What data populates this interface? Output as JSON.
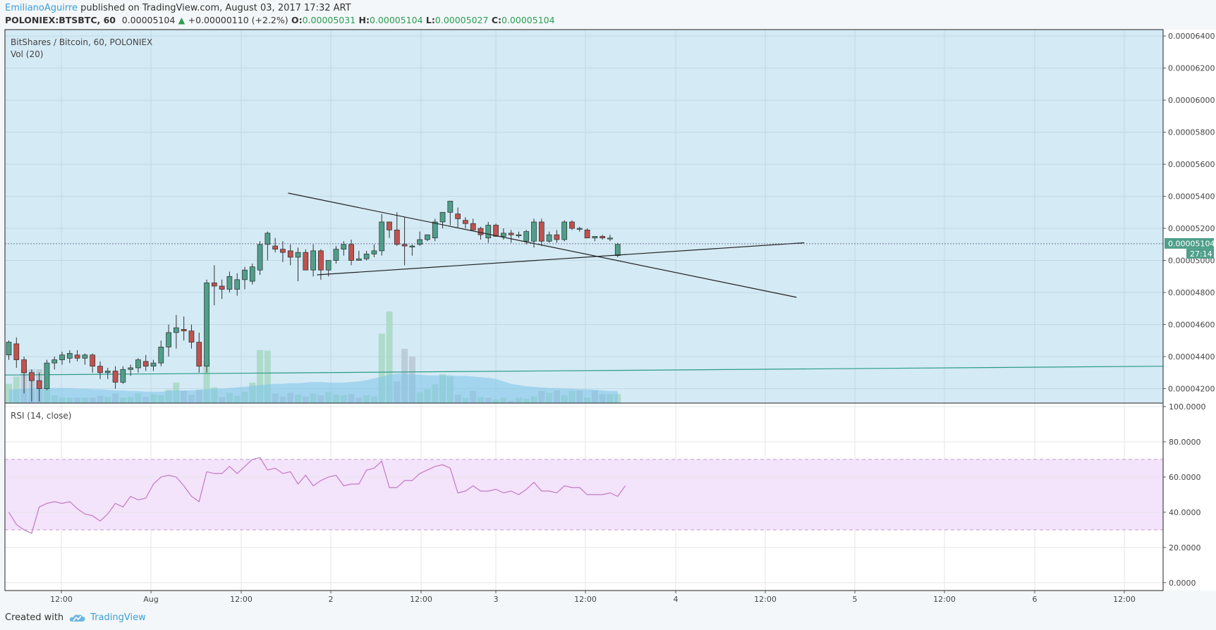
{
  "header": {
    "author": "EmilianoAguirre",
    "published": " published on TradingView.com, August 03, 2017 17:32 ART",
    "symbol": "POLONIEX:BTSBTC, 60",
    "last": "0.00005104",
    "arrow": "▲",
    "change": "+0.00000110 (+2.2%)",
    "o_label": "O:",
    "o_val": "0.00005031",
    "h_label": "H:",
    "h_val": "0.00005104",
    "l_label": "L:",
    "l_val": "0.00005027",
    "c_label": "C:",
    "c_val": "0.00005104"
  },
  "footer": {
    "created_with": "Created with",
    "brand": "TradingView"
  },
  "colors": {
    "price_bg": "#d4eaf5",
    "rsi_bg": "#ffffff",
    "rsi_band": "#f3e3fb",
    "bull": "#4f9f8a",
    "bear": "#c0524f",
    "rsi_line": "#c27bc3",
    "vol_ma": "#7cc3ea",
    "vol_up": "#a7d8c2",
    "vol_down": "#b9c7d3",
    "horizontal_line": "#2b9c85",
    "trend_line": "#222222",
    "last_price_tag": "#4f9f8a"
  },
  "chart_data": [
    {
      "type": "candlestick",
      "title": "BitShares / Bitcoin, 60, POLONIEX",
      "indicator_label": "Vol (20)",
      "y_ticks": [
        "0.00004200",
        "0.00004400",
        "0.00004600",
        "0.00004800",
        "0.00005000",
        "0.00005200",
        "0.00005400",
        "0.00005600",
        "0.00005800",
        "0.00006000",
        "0.00006200",
        "0.00006400"
      ],
      "ylim": [
        4.11e-05,
        6.44e-05
      ],
      "last_price_label": "0.00005104",
      "countdown": "27:14",
      "x_ticks": [
        "12:00",
        "Aug",
        "12:00",
        "2",
        "12:00",
        "3",
        "12:00",
        "4",
        "12:00",
        "5",
        "12:00",
        "6",
        "12:00"
      ],
      "candles": [
        [
          4.41e-05,
          4.5e-05,
          4.38e-05,
          4.49e-05
        ],
        [
          4.48e-05,
          4.52e-05,
          4.33e-05,
          4.38e-05
        ],
        [
          4.38e-05,
          4.4e-05,
          4.17e-05,
          4.3e-05
        ],
        [
          4.3e-05,
          4.32e-05,
          4.12e-05,
          4.25e-05
        ],
        [
          4.25e-05,
          4.3e-05,
          4.12e-05,
          4.2e-05
        ],
        [
          4.2e-05,
          4.38e-05,
          4.19e-05,
          4.36e-05
        ],
        [
          4.36e-05,
          4.4e-05,
          4.32e-05,
          4.38e-05
        ],
        [
          4.38e-05,
          4.43e-05,
          4.35e-05,
          4.41e-05
        ],
        [
          4.39e-05,
          4.44e-05,
          4.36e-05,
          4.42e-05
        ],
        [
          4.41e-05,
          4.44e-05,
          4.37e-05,
          4.39e-05
        ],
        [
          4.39e-05,
          4.42e-05,
          4.35e-05,
          4.41e-05
        ],
        [
          4.41e-05,
          4.42e-05,
          4.3e-05,
          4.34e-05
        ],
        [
          4.34e-05,
          4.37e-05,
          4.26e-05,
          4.3e-05
        ],
        [
          4.3e-05,
          4.33e-05,
          4.26e-05,
          4.31e-05
        ],
        [
          4.31e-05,
          4.34e-05,
          4.2e-05,
          4.24e-05
        ],
        [
          4.24e-05,
          4.34e-05,
          4.23e-05,
          4.32e-05
        ],
        [
          4.32e-05,
          4.35e-05,
          4.28e-05,
          4.33e-05
        ],
        [
          4.33e-05,
          4.39e-05,
          4.3e-05,
          4.38e-05
        ],
        [
          4.37e-05,
          4.41e-05,
          4.31e-05,
          4.34e-05
        ],
        [
          4.34e-05,
          4.38e-05,
          4.31e-05,
          4.36e-05
        ],
        [
          4.36e-05,
          4.5e-05,
          4.34e-05,
          4.46e-05
        ],
        [
          4.46e-05,
          4.6e-05,
          4.4e-05,
          4.55e-05
        ],
        [
          4.55e-05,
          4.66e-05,
          4.45e-05,
          4.58e-05
        ],
        [
          4.57e-05,
          4.65e-05,
          4.5e-05,
          4.56e-05
        ],
        [
          4.56e-05,
          4.6e-05,
          4.45e-05,
          4.49e-05
        ],
        [
          4.49e-05,
          4.55e-05,
          4.3e-05,
          4.34e-05
        ],
        [
          4.34e-05,
          4.88e-05,
          4.3e-05,
          4.86e-05
        ],
        [
          4.86e-05,
          4.97e-05,
          4.72e-05,
          4.84e-05
        ],
        [
          4.84e-05,
          4.88e-05,
          4.76e-05,
          4.82e-05
        ],
        [
          4.82e-05,
          4.93e-05,
          4.8e-05,
          4.9e-05
        ],
        [
          4.82e-05,
          4.92e-05,
          4.78e-05,
          4.88e-05
        ],
        [
          4.88e-05,
          4.96e-05,
          4.82e-05,
          4.94e-05
        ],
        [
          4.87e-05,
          4.98e-05,
          4.85e-05,
          4.96e-05
        ],
        [
          4.94e-05,
          5.12e-05,
          4.91e-05,
          5.1e-05
        ],
        [
          5.1e-05,
          5.18e-05,
          5e-05,
          5.17e-05
        ],
        [
          5.09e-05,
          5.14e-05,
          5.05e-05,
          5.07e-05
        ],
        [
          5.07e-05,
          5.12e-05,
          4.99e-05,
          5.05e-05
        ],
        [
          5.06e-05,
          5.1e-05,
          4.97e-05,
          5.02e-05
        ],
        [
          5.02e-05,
          5.08e-05,
          4.87e-05,
          5.05e-05
        ],
        [
          5.05e-05,
          5.07e-05,
          4.94e-05,
          4.94e-05
        ],
        [
          4.94e-05,
          5.1e-05,
          4.9e-05,
          5.06e-05
        ],
        [
          5.06e-05,
          5.07e-05,
          4.88e-05,
          4.94e-05
        ],
        [
          4.94e-05,
          5e-05,
          4.9e-05,
          5e-05
        ],
        [
          5e-05,
          5.09e-05,
          4.98e-05,
          5.07e-05
        ],
        [
          5.07e-05,
          5.12e-05,
          5.03e-05,
          5.1e-05
        ],
        [
          5.1e-05,
          5.13e-05,
          4.97e-05,
          5e-05
        ],
        [
          5e-05,
          5.06e-05,
          5e-05,
          5.01e-05
        ],
        [
          5.01e-05,
          5.06e-05,
          5e-05,
          5.04e-05
        ],
        [
          5.04e-05,
          5.1e-05,
          5.02e-05,
          5.06e-05
        ],
        [
          5.06e-05,
          5.29e-05,
          5.03e-05,
          5.24e-05
        ],
        [
          5.24e-05,
          5.23e-05,
          5.14e-05,
          5.19e-05
        ],
        [
          5.19e-05,
          5.3e-05,
          5.09e-05,
          5.1e-05
        ],
        [
          5.1e-05,
          5.27e-05,
          4.97e-05,
          5.09e-05
        ],
        [
          5.09e-05,
          5.1e-05,
          5.03e-05,
          5.09e-05
        ],
        [
          5.1e-05,
          5.18e-05,
          5.09e-05,
          5.13e-05
        ],
        [
          5.13e-05,
          5.16e-05,
          5.12e-05,
          5.16e-05
        ],
        [
          5.14e-05,
          5.26e-05,
          5.12e-05,
          5.24e-05
        ],
        [
          5.24e-05,
          5.28e-05,
          5.2e-05,
          5.3e-05
        ],
        [
          5.3e-05,
          5.35e-05,
          5.22e-05,
          5.37e-05
        ],
        [
          5.29e-05,
          5.33e-05,
          5.2e-05,
          5.26e-05
        ],
        [
          5.25e-05,
          5.27e-05,
          5.2e-05,
          5.23e-05
        ],
        [
          5.23e-05,
          5.26e-05,
          5.2e-05,
          5.19e-05
        ],
        [
          5.2e-05,
          5.21e-05,
          5.13e-05,
          5.16e-05
        ],
        [
          5.14e-05,
          5.24e-05,
          5.11e-05,
          5.22e-05
        ],
        [
          5.22e-05,
          5.23e-05,
          5.15e-05,
          5.15e-05
        ],
        [
          5.15e-05,
          5.2e-05,
          5.13e-05,
          5.17e-05
        ],
        [
          5.17e-05,
          5.19e-05,
          5.11e-05,
          5.16e-05
        ],
        [
          5.16e-05,
          5.18e-05,
          5.14e-05,
          5.16e-05
        ],
        [
          5.12e-05,
          5.19e-05,
          5.1e-05,
          5.18e-05
        ],
        [
          5.12e-05,
          5.26e-05,
          5.08e-05,
          5.24e-05
        ],
        [
          5.24e-05,
          5.26e-05,
          5.09e-05,
          5.12e-05
        ],
        [
          5.12e-05,
          5.18e-05,
          5.11e-05,
          5.16e-05
        ],
        [
          5.16e-05,
          5.19e-05,
          5.11e-05,
          5.13e-05
        ],
        [
          5.13e-05,
          5.25e-05,
          5.12e-05,
          5.24e-05
        ],
        [
          5.24e-05,
          5.25e-05,
          5.19e-05,
          5.2e-05
        ],
        [
          5.2e-05,
          5.21e-05,
          5.18e-05,
          5.2e-05
        ],
        [
          5.19e-05,
          5.2e-05,
          5.15e-05,
          5.14e-05
        ],
        [
          5.14e-05,
          5.15e-05,
          5.12e-05,
          5.15e-05
        ],
        [
          5.15e-05,
          5.16e-05,
          5.13e-05,
          5.14e-05
        ],
        [
          5.14e-05,
          5.16e-05,
          5.12e-05,
          5.14e-05
        ],
        [
          5.03e-05,
          5.11e-05,
          5.02e-05,
          5.1e-05
        ]
      ],
      "volume": [
        [
          3.2,
          0
        ],
        [
          4.4,
          0
        ],
        [
          5.6,
          1
        ],
        [
          5.6,
          1
        ],
        [
          5.6,
          1
        ],
        [
          2.7,
          0
        ],
        [
          1.3,
          0
        ],
        [
          0.9,
          0
        ],
        [
          0.9,
          0
        ],
        [
          0.9,
          1
        ],
        [
          0.9,
          0
        ],
        [
          0.9,
          1
        ],
        [
          1.2,
          1
        ],
        [
          1.0,
          0
        ],
        [
          1.6,
          1
        ],
        [
          0.9,
          0
        ],
        [
          1.0,
          0
        ],
        [
          1.6,
          0
        ],
        [
          1.0,
          1
        ],
        [
          1.5,
          0
        ],
        [
          1.3,
          0
        ],
        [
          2.2,
          0
        ],
        [
          3.4,
          0
        ],
        [
          2.0,
          1
        ],
        [
          1.4,
          1
        ],
        [
          2.2,
          1
        ],
        [
          7.1,
          0
        ],
        [
          2.6,
          0
        ],
        [
          1.0,
          1
        ],
        [
          1.7,
          0
        ],
        [
          1.2,
          0
        ],
        [
          1.9,
          0
        ],
        [
          3.4,
          0
        ],
        [
          8.8,
          0
        ],
        [
          8.7,
          0
        ],
        [
          1.6,
          1
        ],
        [
          1.1,
          1
        ],
        [
          1.7,
          1
        ],
        [
          1.4,
          0
        ],
        [
          1.1,
          1
        ],
        [
          1.6,
          0
        ],
        [
          1.3,
          1
        ],
        [
          1.8,
          0
        ],
        [
          1.4,
          0
        ],
        [
          1.3,
          0
        ],
        [
          1.5,
          1
        ],
        [
          0.9,
          1
        ],
        [
          1.3,
          0
        ],
        [
          1.1,
          0
        ],
        [
          11.5,
          0
        ],
        [
          15.2,
          0
        ],
        [
          3.6,
          1
        ],
        [
          9.0,
          1
        ],
        [
          7.7,
          1
        ],
        [
          1.8,
          0
        ],
        [
          2.3,
          0
        ],
        [
          3.1,
          0
        ],
        [
          4.8,
          0
        ],
        [
          4.4,
          0
        ],
        [
          1.4,
          1
        ],
        [
          0.9,
          0
        ],
        [
          2.0,
          1
        ],
        [
          1.0,
          0
        ],
        [
          0.9,
          1
        ],
        [
          0.6,
          0
        ],
        [
          0.9,
          0
        ],
        [
          0.4,
          1
        ],
        [
          0.9,
          0
        ],
        [
          0.7,
          0
        ],
        [
          1.1,
          0
        ],
        [
          2.0,
          1
        ],
        [
          1.7,
          0
        ],
        [
          2.1,
          1
        ],
        [
          1.3,
          0
        ],
        [
          2.0,
          0
        ],
        [
          2.1,
          1
        ],
        [
          0.9,
          0
        ],
        [
          2.1,
          1
        ],
        [
          1.5,
          1
        ],
        [
          1.5,
          0
        ],
        [
          1.5,
          0
        ]
      ],
      "volume_ma": [
        2.2,
        2.3,
        2.4,
        2.5,
        2.5,
        2.5,
        2.5,
        2.5,
        2.5,
        2.4,
        2.4,
        2.3,
        2.3,
        2.2,
        2.1,
        2.1,
        2.0,
        2.0,
        1.9,
        1.9,
        1.9,
        2.0,
        2.1,
        2.1,
        2.1,
        2.2,
        2.3,
        2.4,
        2.4,
        2.5,
        2.6,
        2.7,
        2.9,
        3.0,
        3.1,
        3.2,
        3.2,
        3.3,
        3.3,
        3.4,
        3.5,
        3.5,
        3.4,
        3.4,
        3.4,
        3.5,
        3.6,
        3.8,
        4.1,
        4.4,
        4.7,
        4.9,
        4.9,
        4.8,
        4.7,
        4.6,
        4.6,
        4.6,
        4.6,
        4.5,
        4.5,
        4.4,
        4.3,
        4.2,
        4.0,
        3.6,
        3.2,
        3.0,
        2.8,
        2.7,
        2.6,
        2.5,
        2.5,
        2.4,
        2.4,
        2.3,
        2.3,
        2.2,
        2.1,
        2.0,
        2.0
      ],
      "horizontal_line": [
        4.285e-05,
        4.34e-05
      ],
      "trend_lines": [
        {
          "from": [
            36.7,
            5.42e-05
          ],
          "to": [
            103.5,
            4.77e-05
          ]
        },
        {
          "from": [
            40.5,
            4.91e-05
          ],
          "to": [
            104.5,
            5.11e-05
          ]
        }
      ]
    },
    {
      "type": "line",
      "title": "RSI (14, close)",
      "y_ticks": [
        "0.0000",
        "20.0000",
        "40.0000",
        "60.0000",
        "80.0000",
        "100.0000"
      ],
      "ylim": [
        -4.5,
        102
      ],
      "band": [
        30,
        70
      ],
      "values": [
        40,
        33,
        30,
        28,
        43,
        45,
        46,
        45,
        46,
        42,
        39,
        38,
        35,
        39,
        45,
        43,
        49,
        47,
        48,
        56,
        60,
        61,
        60,
        55,
        49,
        46,
        63,
        62,
        62,
        66,
        62,
        66,
        70,
        71,
        64,
        65,
        62,
        63,
        56,
        61,
        55,
        58,
        60,
        61,
        55,
        56,
        56,
        64,
        65,
        69,
        54,
        54,
        58,
        58,
        62,
        64,
        66,
        67,
        65,
        51,
        52,
        55,
        52,
        52,
        53,
        51,
        52,
        50,
        53,
        57,
        52,
        52,
        51,
        55,
        54,
        54,
        50,
        50,
        50,
        51,
        49,
        55
      ]
    }
  ]
}
